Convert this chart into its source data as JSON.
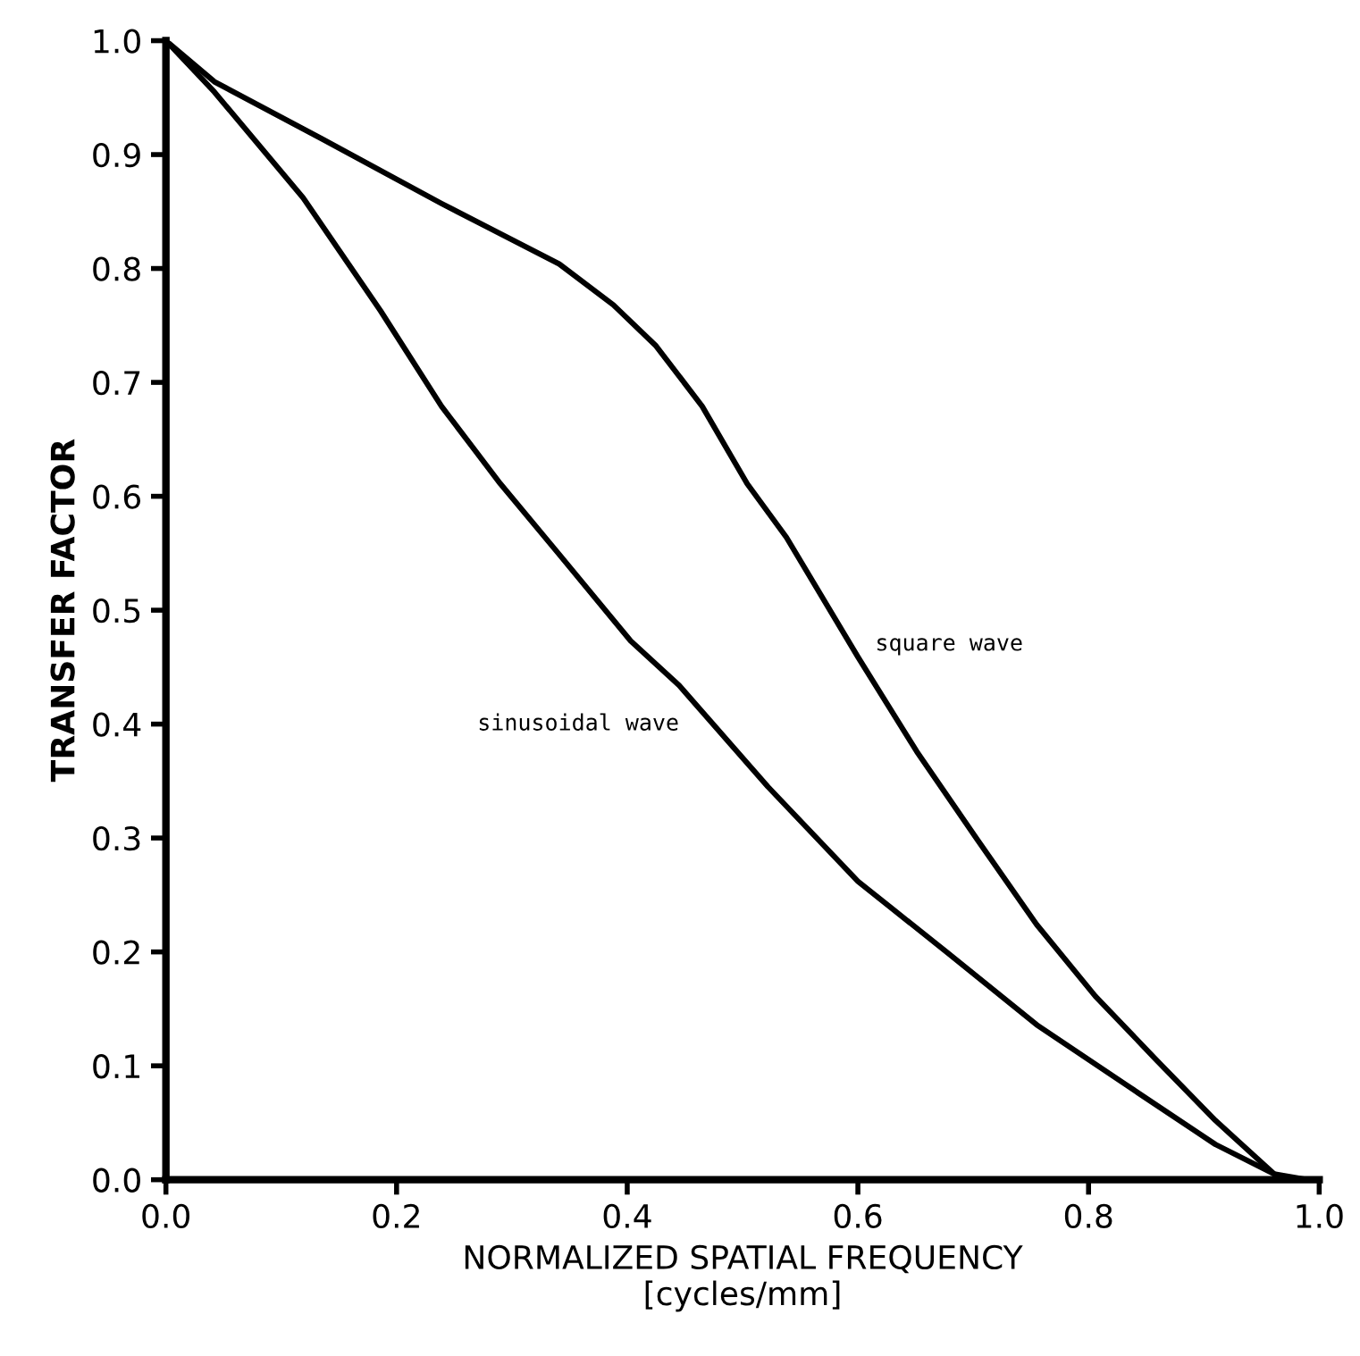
{
  "chart_data": {
    "type": "line",
    "xlabel": "NORMALIZED SPATIAL FREQUENCY\n[cycles/mm]",
    "ylabel": "TRANSFER FACTOR",
    "xlim": [
      0,
      1.0
    ],
    "ylim": [
      0,
      1.0
    ],
    "xticks": [
      {
        "value": 0,
        "label": "0.0"
      },
      {
        "value": 0.2,
        "label": "0.2"
      },
      {
        "value": 0.4,
        "label": "0.4"
      },
      {
        "value": 0.6,
        "label": "0.6"
      },
      {
        "value": 0.8,
        "label": "0.8"
      },
      {
        "value": 1.0,
        "label": "1.0"
      }
    ],
    "yticks": [
      {
        "value": 0,
        "label": "0.0"
      },
      0.1,
      0.2,
      0.3,
      0.4,
      0.5,
      0.6,
      0.7,
      0.8,
      0.9,
      {
        "value": 1.0,
        "label": "1.0"
      }
    ],
    "grid": false,
    "legend": false,
    "marker": "none",
    "line_style": "solid",
    "series": [
      {
        "name": "square wave",
        "color": "#000000",
        "x": [
          0,
          0.042,
          0.135,
          0.239,
          0.341,
          0.388,
          0.425,
          0.465,
          0.504,
          0.538,
          0.6,
          0.651,
          0.704,
          0.755,
          0.806,
          0.859,
          0.91,
          0.961,
          0.99
        ],
        "values": [
          1.0,
          0.964,
          0.914,
          0.857,
          0.804,
          0.768,
          0.732,
          0.679,
          0.611,
          0.564,
          0.459,
          0.376,
          0.298,
          0.224,
          0.161,
          0.105,
          0.052,
          0.005,
          0.0
        ]
      },
      {
        "name": "sinusoidal wave",
        "color": "#000000",
        "x": [
          0,
          0.042,
          0.119,
          0.186,
          0.239,
          0.29,
          0.341,
          0.403,
          0.445,
          0.522,
          0.6,
          0.678,
          0.755,
          0.833,
          0.91,
          0.961,
          0.975
        ],
        "values": [
          1.0,
          0.955,
          0.862,
          0.763,
          0.679,
          0.611,
          0.549,
          0.473,
          0.434,
          0.345,
          0.262,
          0.199,
          0.136,
          0.083,
          0.031,
          0.005,
          0.0
        ]
      }
    ]
  }
}
